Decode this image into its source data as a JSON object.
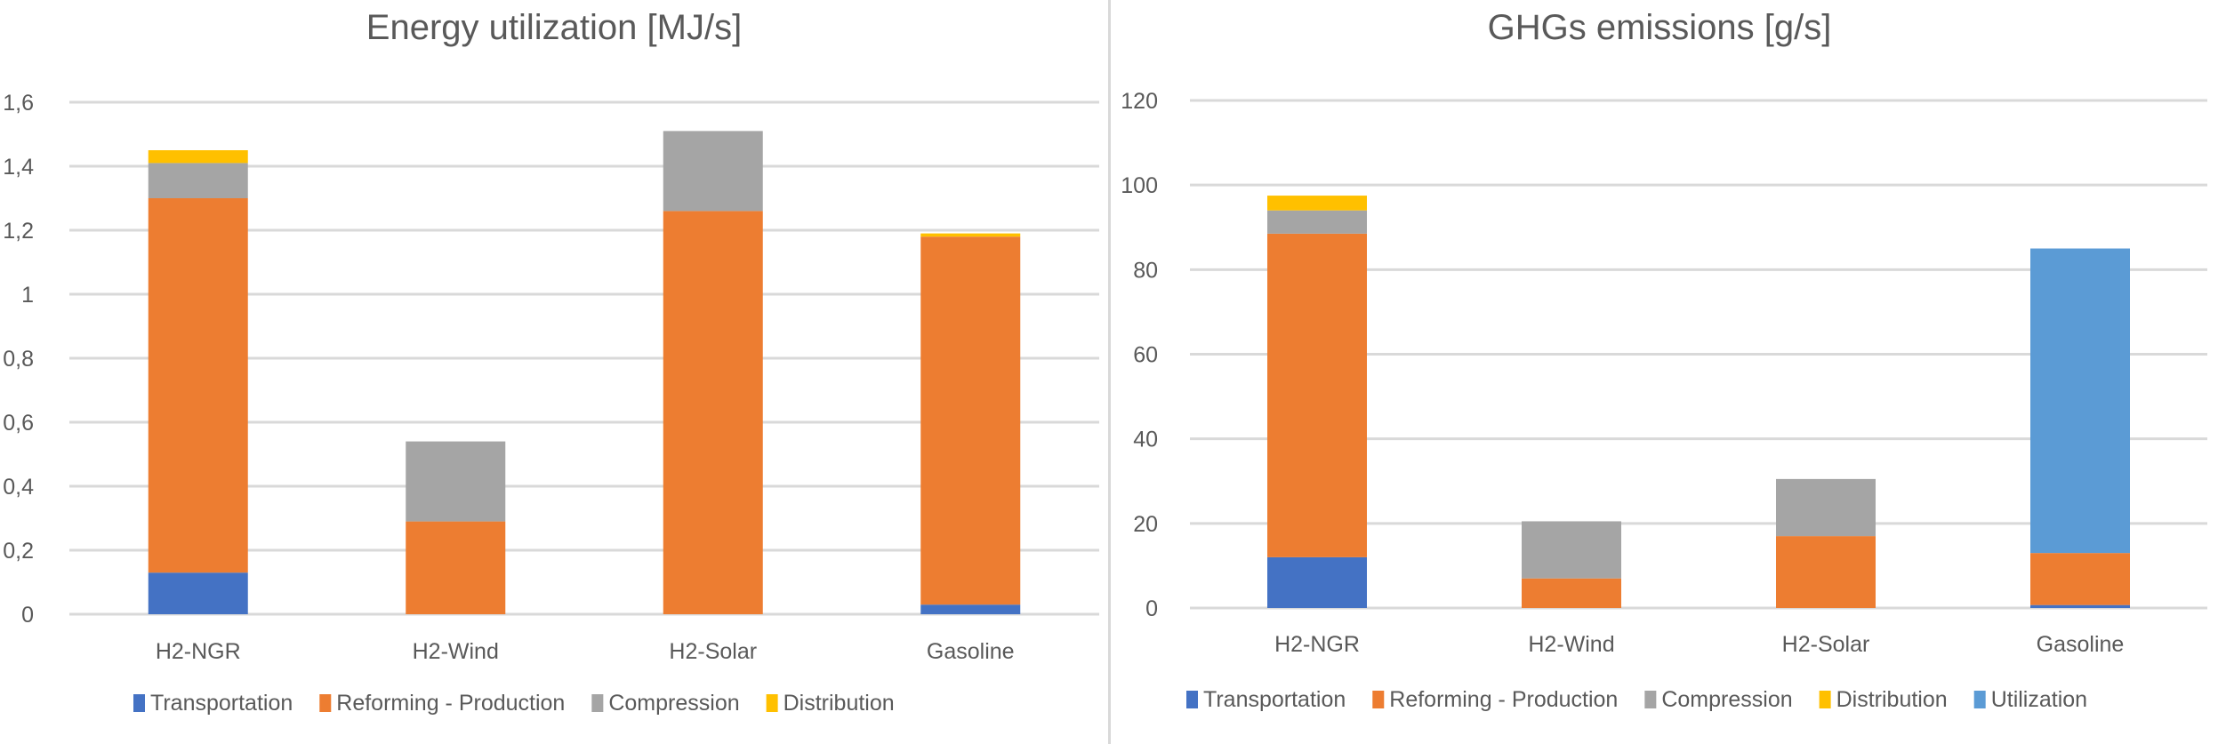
{
  "chart_data": [
    {
      "type": "bar",
      "stacked": true,
      "title": "Energy utilization [MJ/s]",
      "xlabel": "",
      "ylabel": "",
      "categories": [
        "H2-NGR",
        "H2-Wind",
        "H2-Solar",
        "Gasoline"
      ],
      "ylim": [
        0,
        1.6
      ],
      "yticks": [
        0,
        0.2,
        0.4,
        0.6,
        0.8,
        1.0,
        1.2,
        1.4,
        1.6
      ],
      "ytick_labels": [
        "0",
        "0,2",
        "0,4",
        "0,6",
        "0,8",
        "1",
        "1,2",
        "1,4",
        "1,6"
      ],
      "grid": true,
      "legend_position": "bottom",
      "series": [
        {
          "name": "Transportation",
          "color": "#4472c4",
          "values": [
            0.13,
            0,
            0,
            0.03
          ]
        },
        {
          "name": "Reforming - Production",
          "color": "#ed7d31",
          "values": [
            1.17,
            0.29,
            1.26,
            1.15
          ]
        },
        {
          "name": "Compression",
          "color": "#a5a5a5",
          "values": [
            0.11,
            0.25,
            0.25,
            0
          ]
        },
        {
          "name": "Distribution",
          "color": "#ffc000",
          "values": [
            0.04,
            0,
            0,
            0.01
          ]
        }
      ]
    },
    {
      "type": "bar",
      "stacked": true,
      "title": "GHGs emissions [g/s]",
      "xlabel": "",
      "ylabel": "",
      "categories": [
        "H2-NGR",
        "H2-Wind",
        "H2-Solar",
        "Gasoline"
      ],
      "ylim": [
        0,
        120
      ],
      "yticks": [
        0,
        20,
        40,
        60,
        80,
        100,
        120
      ],
      "ytick_labels": [
        "0",
        "20",
        "40",
        "60",
        "80",
        "100",
        "120"
      ],
      "grid": true,
      "legend_position": "bottom",
      "series": [
        {
          "name": "Transportation",
          "color": "#4472c4",
          "values": [
            12,
            0,
            0,
            0.7
          ]
        },
        {
          "name": "Reforming - Production",
          "color": "#ed7d31",
          "values": [
            76.5,
            7,
            17,
            12.3
          ]
        },
        {
          "name": "Compression",
          "color": "#a5a5a5",
          "values": [
            5.5,
            13.5,
            13.5,
            0
          ]
        },
        {
          "name": "Distribution",
          "color": "#ffc000",
          "values": [
            3.5,
            0,
            0,
            0
          ]
        },
        {
          "name": "Utilization",
          "color": "#5b9bd5",
          "values": [
            0,
            0,
            0,
            72
          ]
        }
      ]
    }
  ]
}
